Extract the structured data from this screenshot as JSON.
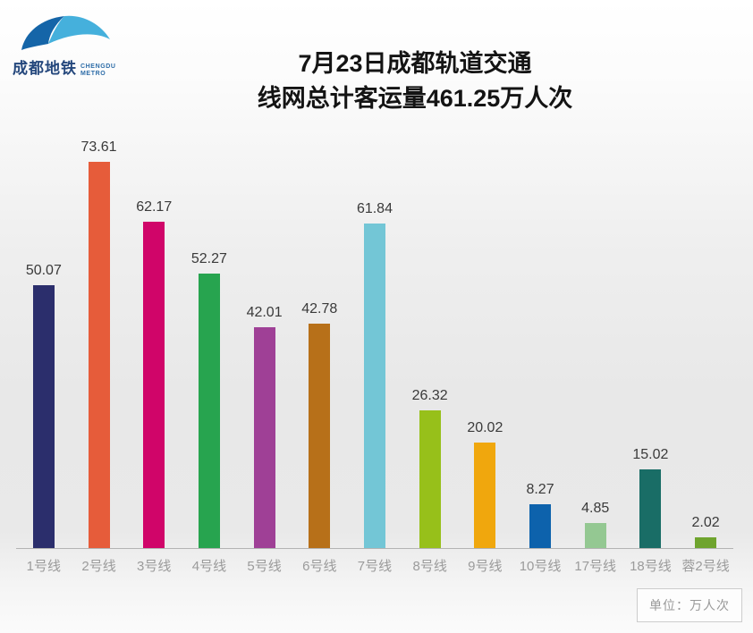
{
  "logo": {
    "cn": "成都地铁",
    "en_line1": "CHENGDU",
    "en_line2": "METRO",
    "swoosh_dark": "#1565a8",
    "swoosh_light": "#45b0dc"
  },
  "title": {
    "line1": "7月23日成都轨道交通",
    "line2": "线网总计客运量461.25万人次"
  },
  "unit_box": {
    "label": "单位：万人次"
  },
  "chart_data": {
    "type": "bar",
    "title": "7月23日成都轨道交通线网总计客运量461.25万人次",
    "unit": "万人次",
    "categories": [
      "1号线",
      "2号线",
      "3号线",
      "4号线",
      "5号线",
      "6号线",
      "7号线",
      "8号线",
      "9号线",
      "10号线",
      "17号线",
      "18号线",
      "蓉2号线"
    ],
    "values": [
      50.07,
      73.61,
      62.17,
      52.27,
      42.01,
      42.78,
      61.84,
      26.32,
      20.02,
      8.27,
      4.85,
      15.02,
      2.02
    ],
    "colors": [
      "#2b2e6c",
      "#e65c3a",
      "#d00569",
      "#27a44f",
      "#9f4096",
      "#b77019",
      "#73c6d6",
      "#97c01a",
      "#f0a70d",
      "#0d62ac",
      "#94c892",
      "#196d66",
      "#6fa42e"
    ],
    "total": 461.25,
    "ylim": [
      0,
      80
    ],
    "grid": false,
    "legend": "none",
    "value_labels": true,
    "axis_line_color": "#b3b3b3",
    "value_label_color": "#3a3a3a",
    "category_label_color": "#9b9b9b"
  }
}
